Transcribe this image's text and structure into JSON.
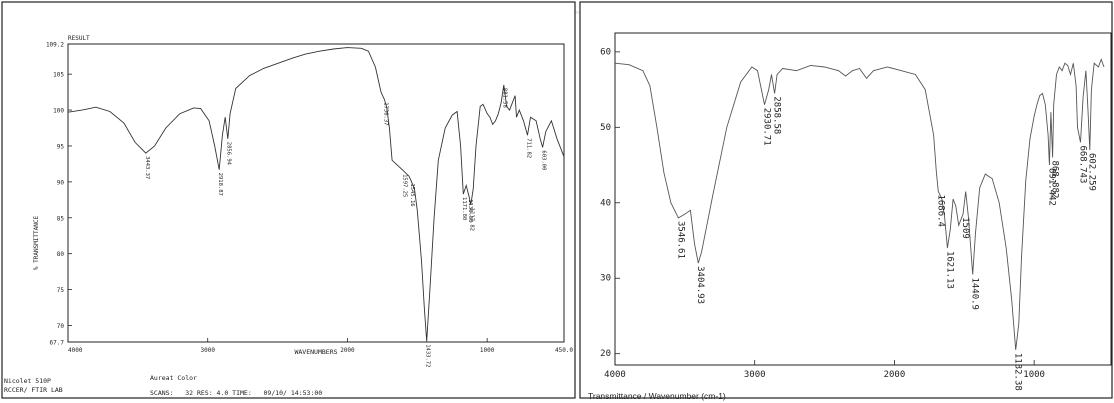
{
  "chart_data": [
    {
      "type": "line",
      "title": "RESULT",
      "xlabel": "WAVENUMBERS",
      "ylabel": "% TRANSMITTANCE",
      "xlim": [
        4000,
        450
      ],
      "ylim": [
        67.7,
        109.2
      ],
      "x_ticks": [
        "4000",
        "3000",
        "2000",
        "1000",
        "450.0"
      ],
      "y_ticks": [
        "109.2",
        "105",
        "100",
        "95",
        "90",
        "85",
        "80",
        "75",
        "70",
        "67.7"
      ],
      "tick_values_y": [
        109.2,
        105,
        100,
        95,
        90,
        85,
        80,
        75,
        70,
        67.7
      ],
      "tick_values_x": [
        4000,
        3000,
        2000,
        1000,
        450
      ],
      "series": [
        {
          "points": [
            [
              4000,
              99.7
            ],
            [
              3900,
              100.0
            ],
            [
              3800,
              100.4
            ],
            [
              3700,
              99.8
            ],
            [
              3600,
              98.2
            ],
            [
              3520,
              95.5
            ],
            [
              3443,
              94.0
            ],
            [
              3380,
              95.0
            ],
            [
              3300,
              97.5
            ],
            [
              3200,
              99.5
            ],
            [
              3100,
              100.3
            ],
            [
              3050,
              100.2
            ],
            [
              2990,
              98.5
            ],
            [
              2950,
              95.0
            ],
            [
              2918,
              91.7
            ],
            [
              2895,
              96.5
            ],
            [
              2875,
              99.0
            ],
            [
              2856,
              96.0
            ],
            [
              2840,
              99.5
            ],
            [
              2800,
              103.0
            ],
            [
              2700,
              104.8
            ],
            [
              2600,
              105.8
            ],
            [
              2500,
              106.5
            ],
            [
              2400,
              107.2
            ],
            [
              2300,
              107.8
            ],
            [
              2200,
              108.2
            ],
            [
              2100,
              108.5
            ],
            [
              2000,
              108.7
            ],
            [
              1900,
              108.6
            ],
            [
              1850,
              108.2
            ],
            [
              1800,
              106.0
            ],
            [
              1760,
              102.5
            ],
            [
              1736,
              101.5
            ],
            [
              1720,
              100.5
            ],
            [
              1700,
              97.5
            ],
            [
              1680,
              93.0
            ],
            [
              1640,
              92.3
            ],
            [
              1597,
              91.5
            ],
            [
              1560,
              90.8
            ],
            [
              1545,
              90.2
            ],
            [
              1520,
              89.0
            ],
            [
              1500,
              86.0
            ],
            [
              1470,
              79.0
            ],
            [
              1450,
              72.5
            ],
            [
              1433,
              67.8
            ],
            [
              1410,
              75.0
            ],
            [
              1380,
              85.0
            ],
            [
              1350,
              93.0
            ],
            [
              1300,
              97.5
            ],
            [
              1250,
              99.3
            ],
            [
              1215,
              99.8
            ],
            [
              1190,
              95.0
            ],
            [
              1171,
              88.3
            ],
            [
              1150,
              89.5
            ],
            [
              1130,
              88.0
            ],
            [
              1117,
              86.8
            ],
            [
              1100,
              89.0
            ],
            [
              1080,
              95.0
            ],
            [
              1050,
              100.5
            ],
            [
              1030,
              100.8
            ],
            [
              1000,
              99.5
            ],
            [
              980,
              99.0
            ],
            [
              960,
              98.0
            ],
            [
              940,
              98.5
            ],
            [
              920,
              99.5
            ],
            [
              900,
              101.0
            ],
            [
              881,
              103.5
            ],
            [
              860,
              100.5
            ],
            [
              840,
              100.0
            ],
            [
              820,
              101.0
            ],
            [
              800,
              102.0
            ],
            [
              790,
              99.0
            ],
            [
              770,
              100.0
            ],
            [
              740,
              98.5
            ],
            [
              711,
              96.5
            ],
            [
              690,
              99.0
            ],
            [
              650,
              98.5
            ],
            [
              620,
              96.0
            ],
            [
              603,
              94.8
            ],
            [
              580,
              97.0
            ],
            [
              540,
              98.5
            ],
            [
              500,
              96.0
            ],
            [
              470,
              94.5
            ],
            [
              450,
              93.5
            ]
          ]
        }
      ],
      "annotations": [
        "3443.37",
        "2918.87",
        "2856.94",
        "1736.37",
        "1597.25",
        "1545.16",
        "1433.72",
        "1171.80",
        "1130.38",
        "1117.82",
        "881.58",
        "711.82",
        "603.00"
      ],
      "annotation_x": [
        3443.37,
        2918.87,
        2856.94,
        1736.37,
        1597.25,
        1545.16,
        1433.72,
        1171.8,
        1130.38,
        1117.82,
        881.58,
        711.82,
        603.0
      ],
      "annotation_y": [
        94.0,
        91.7,
        96.0,
        101.5,
        91.5,
        90.2,
        67.8,
        88.3,
        88.0,
        86.8,
        103.5,
        96.5,
        94.8
      ],
      "footer": {
        "instrument": "Nicolet 510P",
        "lab": "RCCER/ FTIR LAB",
        "sample": "Aureat Color",
        "scans_line": "SCANS:   32 RES: 4.0 TIME:   09/10/ 14:53:00"
      }
    },
    {
      "type": "line",
      "xlabel": "Transmittance / Wavenumber (cm-1)",
      "ylabel": "",
      "xlim": [
        4000,
        450
      ],
      "ylim": [
        18.5,
        62.5
      ],
      "x_ticks": [
        "4000",
        "3000",
        "2000",
        "1000"
      ],
      "y_ticks": [
        "60",
        "50",
        "40",
        "30",
        "20"
      ],
      "tick_values_y": [
        60,
        50,
        40,
        30,
        20
      ],
      "tick_values_x": [
        4000,
        3000,
        2000,
        1000
      ],
      "series": [
        {
          "points": [
            [
              4000,
              58.5
            ],
            [
              3900,
              58.3
            ],
            [
              3800,
              57.5
            ],
            [
              3750,
              55.5
            ],
            [
              3700,
              50.0
            ],
            [
              3650,
              44.0
            ],
            [
              3600,
              40.0
            ],
            [
              3546,
              38.0
            ],
            [
              3500,
              38.5
            ],
            [
              3460,
              39.0
            ],
            [
              3430,
              34.5
            ],
            [
              3404,
              32.0
            ],
            [
              3380,
              33.5
            ],
            [
              3300,
              41.0
            ],
            [
              3200,
              50.0
            ],
            [
              3100,
              56.0
            ],
            [
              3020,
              58.0
            ],
            [
              2980,
              57.5
            ],
            [
              2930,
              53.0
            ],
            [
              2900,
              55.0
            ],
            [
              2880,
              57.0
            ],
            [
              2858,
              54.5
            ],
            [
              2840,
              57.0
            ],
            [
              2800,
              57.8
            ],
            [
              2700,
              57.5
            ],
            [
              2600,
              58.2
            ],
            [
              2500,
              58.0
            ],
            [
              2400,
              57.5
            ],
            [
              2350,
              56.8
            ],
            [
              2300,
              57.5
            ],
            [
              2250,
              57.8
            ],
            [
              2200,
              56.5
            ],
            [
              2150,
              57.5
            ],
            [
              2050,
              58.0
            ],
            [
              1950,
              57.5
            ],
            [
              1850,
              57.0
            ],
            [
              1780,
              55.0
            ],
            [
              1720,
              49.0
            ],
            [
              1700,
              44.0
            ],
            [
              1686,
              41.5
            ],
            [
              1660,
              40.5
            ],
            [
              1640,
              38.0
            ],
            [
              1621,
              34.0
            ],
            [
              1600,
              36.5
            ],
            [
              1580,
              40.5
            ],
            [
              1560,
              39.5
            ],
            [
              1540,
              37.0
            ],
            [
              1509,
              38.5
            ],
            [
              1490,
              41.5
            ],
            [
              1470,
              38.0
            ],
            [
              1440,
              30.5
            ],
            [
              1420,
              36.0
            ],
            [
              1390,
              42.0
            ],
            [
              1350,
              43.8
            ],
            [
              1300,
              43.2
            ],
            [
              1250,
              40.0
            ],
            [
              1200,
              34.0
            ],
            [
              1160,
              27.0
            ],
            [
              1132,
              20.5
            ],
            [
              1110,
              24.0
            ],
            [
              1090,
              33.0
            ],
            [
              1060,
              43.0
            ],
            [
              1030,
              48.5
            ],
            [
              1000,
              51.5
            ],
            [
              980,
              53.0
            ],
            [
              960,
              54.2
            ],
            [
              940,
              54.5
            ],
            [
              920,
              53.0
            ],
            [
              900,
              49.0
            ],
            [
              891,
              45.0
            ],
            [
              880,
              52.0
            ],
            [
              868,
              46.0
            ],
            [
              860,
              53.0
            ],
            [
              840,
              57.0
            ],
            [
              820,
              58.0
            ],
            [
              800,
              57.5
            ],
            [
              780,
              58.5
            ],
            [
              760,
              58.2
            ],
            [
              740,
              57.0
            ],
            [
              720,
              58.5
            ],
            [
              700,
              55.5
            ],
            [
              690,
              50.0
            ],
            [
              668,
              48.0
            ],
            [
              650,
              54.0
            ],
            [
              630,
              57.5
            ],
            [
              615,
              52.5
            ],
            [
              602,
              47.0
            ],
            [
              590,
              55.0
            ],
            [
              570,
              58.5
            ],
            [
              540,
              58.0
            ],
            [
              520,
              59.0
            ],
            [
              500,
              58.0
            ]
          ]
        }
      ],
      "annotations": [
        "3546.61",
        "3404.93",
        "2930.71",
        "2858.58",
        "1686.4",
        "1621.13",
        "1509",
        "1440.9",
        "1132.38",
        "891.442",
        "868.882",
        "668.743",
        "602.259"
      ],
      "annotation_x": [
        3546.61,
        3404.93,
        2930.71,
        2858.58,
        1686.4,
        1621.13,
        1509,
        1440.9,
        1132.38,
        891.442,
        868.882,
        668.743,
        602.259
      ],
      "annotation_y": [
        38.0,
        32.0,
        53.0,
        54.5,
        41.5,
        34.0,
        38.5,
        30.5,
        20.5,
        45.0,
        46.0,
        48.0,
        47.0
      ]
    }
  ]
}
